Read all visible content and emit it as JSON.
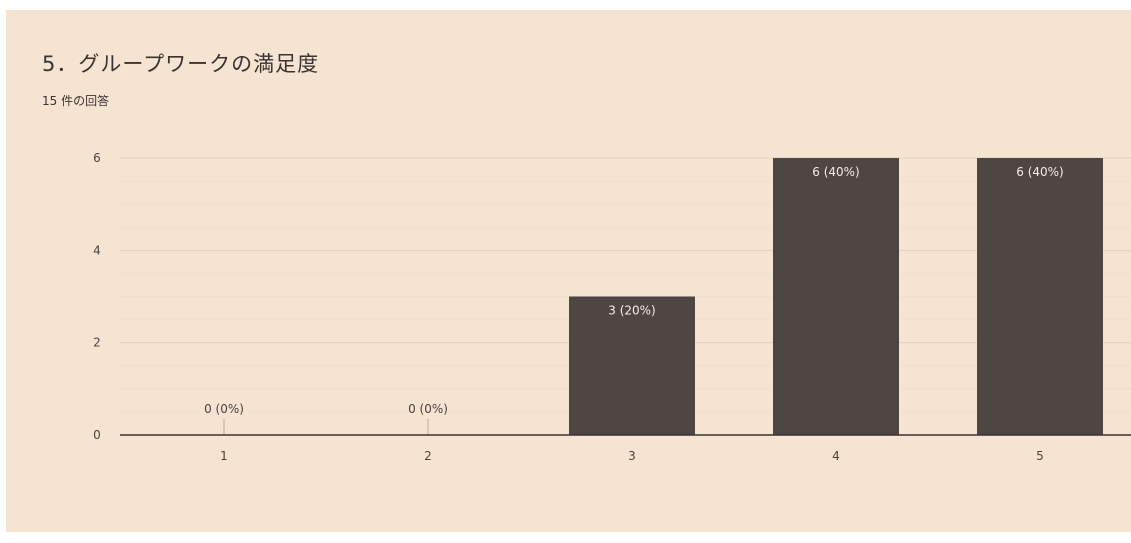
{
  "question": {
    "title": "5．グループワークの満足度",
    "response_count": "15 件の回答"
  },
  "chart_data": {
    "type": "bar",
    "title": "5．グループワークの満足度",
    "categories": [
      "1",
      "2",
      "3",
      "4",
      "5"
    ],
    "values": [
      0,
      0,
      3,
      6,
      6
    ],
    "data_labels": [
      "0 (0%)",
      "0 (0%)",
      "3 (20%)",
      "6 (40%)",
      "6 (40%)"
    ],
    "yticks": [
      "0",
      "2",
      "4",
      "6"
    ],
    "ylim": [
      0,
      6
    ],
    "grid": true,
    "bar_color": "#4d4642",
    "background": "#f5e4d2"
  }
}
